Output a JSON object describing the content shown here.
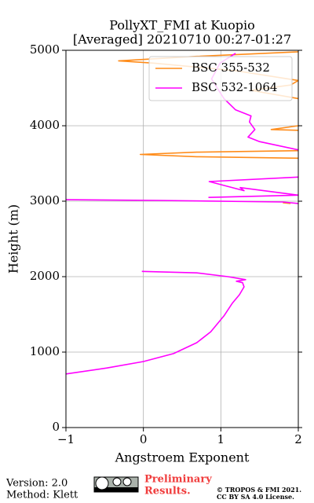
{
  "chart_data": {
    "type": "line",
    "title": [
      "PollyXT_FMI at Kuopio",
      "[Averaged] 20210710 00:27-01:27"
    ],
    "x_label": "Angstroem Exponent",
    "y_label": "Height (m)",
    "xlim": [
      -1,
      2
    ],
    "ylim": [
      0,
      5000
    ],
    "xticks": [
      {
        "value": -1,
        "label": "−1"
      },
      0,
      1,
      2
    ],
    "yticks": [
      0,
      1000,
      2000,
      3000,
      4000,
      5000
    ],
    "grid": true,
    "legend": "upper right",
    "series": [
      {
        "name": "BSC 355-532",
        "color": "#ff8c1a",
        "x": [
          2,
          0.69,
          -0.32,
          0.13,
          1.19,
          2,
          1.9,
          1.39,
          2,
          null,
          2,
          1.65,
          2,
          null,
          2,
          0.69,
          -0.04,
          0.69,
          2,
          null,
          1.8,
          1.9
        ],
        "values": [
          4980,
          4920,
          4860,
          4830,
          4730,
          4600,
          4540,
          4470,
          4360,
          null,
          4000,
          3950,
          3940,
          null,
          3670,
          3650,
          3620,
          3590,
          3570,
          null,
          2980,
          2970
        ]
      },
      {
        "name": "BSC 532-1064",
        "color": "#ff00ff",
        "x": [
          -1,
          -0.47,
          0,
          0.39,
          0.69,
          0.87,
          1.04,
          1.15,
          1.24,
          1.3,
          1.28,
          1.2,
          1.32,
          1.09,
          0.69,
          -0.02,
          null,
          -1,
          0.18,
          1.8,
          2,
          null,
          0.84,
          2,
          1.25,
          1.3,
          0.85,
          2,
          null,
          2,
          1.5,
          1.35,
          1.44,
          1.37,
          1.39,
          1.19,
          1.04,
          0.88,
          0.99,
          1.19
        ],
        "values": [
          710,
          790,
          875,
          980,
          1125,
          1270,
          1480,
          1650,
          1760,
          1865,
          1920,
          1940,
          1960,
          2000,
          2050,
          2070,
          null,
          3020,
          3010,
          2990,
          2970,
          null,
          3050,
          3080,
          3180,
          3140,
          3260,
          3320,
          null,
          3680,
          3790,
          3850,
          3950,
          4050,
          4130,
          4210,
          4360,
          4620,
          4830,
          4960
        ]
      }
    ]
  },
  "footer": {
    "version": "Version: 2.0",
    "method": "Method: Klett",
    "preliminary": [
      "Preliminary",
      "Results."
    ],
    "copyright": [
      "© TROPOS & FMI 2021.",
      "CC BY SA 4.0 License."
    ]
  }
}
